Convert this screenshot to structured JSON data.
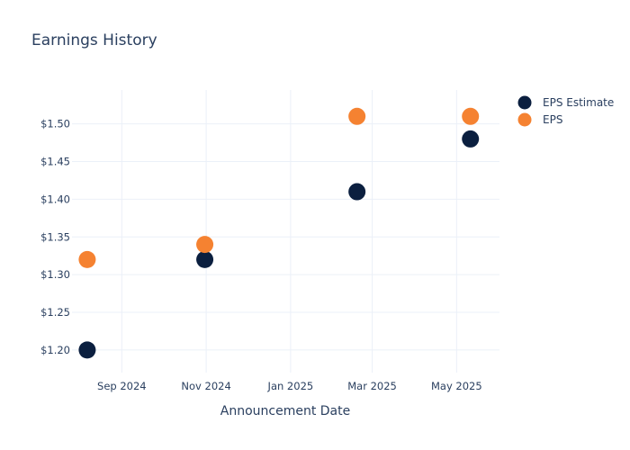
{
  "chart_data": {
    "type": "scatter",
    "title": "Earnings History",
    "xlabel": "Announcement Date",
    "ylabel": "",
    "x_ticks": [
      "Sep 2024",
      "Nov 2024",
      "Jan 2025",
      "Mar 2025",
      "May 2025"
    ],
    "x_tick_dates": [
      "2024-09-01",
      "2024-11-01",
      "2025-01-01",
      "2025-03-01",
      "2025-05-01"
    ],
    "y_ticks": [
      "$1.20",
      "$1.25",
      "$1.30",
      "$1.35",
      "$1.40",
      "$1.45",
      "$1.50"
    ],
    "y_tick_values": [
      1.2,
      1.25,
      1.3,
      1.35,
      1.4,
      1.45,
      1.5
    ],
    "xlim": [
      "2024-07-27",
      "2025-06-01"
    ],
    "ylim": [
      1.17,
      1.545
    ],
    "grid": true,
    "legend_position": "top-right",
    "series": [
      {
        "name": "EPS Estimate",
        "color": "#0b1f3f",
        "x": [
          "2024-08-07",
          "2024-10-31",
          "2025-02-18",
          "2025-05-11"
        ],
        "y": [
          1.2,
          1.32,
          1.41,
          1.48
        ]
      },
      {
        "name": "EPS",
        "color": "#f58231",
        "x": [
          "2024-08-07",
          "2024-10-31",
          "2025-02-18",
          "2025-05-11"
        ],
        "y": [
          1.32,
          1.34,
          1.51,
          1.51
        ]
      }
    ]
  }
}
